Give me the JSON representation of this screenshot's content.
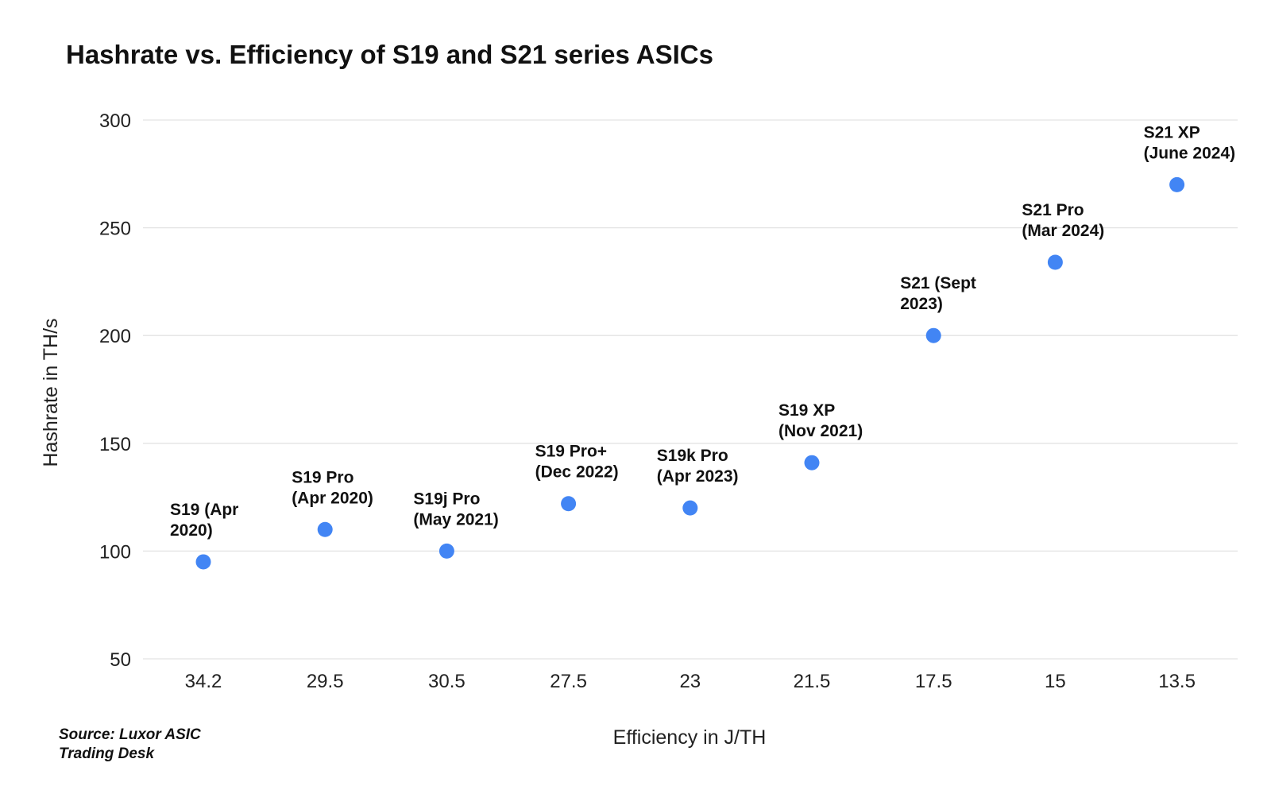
{
  "chart_data": {
    "type": "scatter",
    "title": "Hashrate vs. Efficiency of S19 and S21 series ASICs",
    "xlabel": "Efficiency in J/TH",
    "ylabel": "Hashrate in TH/s",
    "categories": [
      "34.2",
      "29.5",
      "30.5",
      "27.5",
      "23",
      "21.5",
      "17.5",
      "15",
      "13.5"
    ],
    "ylim": [
      50,
      300
    ],
    "yticks": [
      50,
      100,
      150,
      200,
      250,
      300
    ],
    "grid": true,
    "point_color": "#4285f4",
    "points": [
      {
        "x": "34.2",
        "y": 95,
        "label_lines": [
          "S19 (Apr",
          "2020)"
        ]
      },
      {
        "x": "29.5",
        "y": 110,
        "label_lines": [
          "S19 Pro",
          "(Apr 2020)"
        ]
      },
      {
        "x": "30.5",
        "y": 100,
        "label_lines": [
          "S19j Pro",
          "(May 2021)"
        ]
      },
      {
        "x": "27.5",
        "y": 122,
        "label_lines": [
          "S19 Pro+",
          "(Dec 2022)"
        ]
      },
      {
        "x": "23",
        "y": 120,
        "label_lines": [
          "S19k Pro",
          "(Apr 2023)"
        ]
      },
      {
        "x": "21.5",
        "y": 141,
        "label_lines": [
          "S19 XP",
          "(Nov 2021)"
        ]
      },
      {
        "x": "17.5",
        "y": 200,
        "label_lines": [
          "S21 (Sept",
          "2023)"
        ]
      },
      {
        "x": "15",
        "y": 234,
        "label_lines": [
          "S21 Pro",
          "(Mar 2024)"
        ]
      },
      {
        "x": "13.5",
        "y": 270,
        "label_lines": [
          "S21 XP",
          "(June 2024)"
        ]
      }
    ]
  },
  "source_note": "Source: Luxor ASIC Trading Desk"
}
